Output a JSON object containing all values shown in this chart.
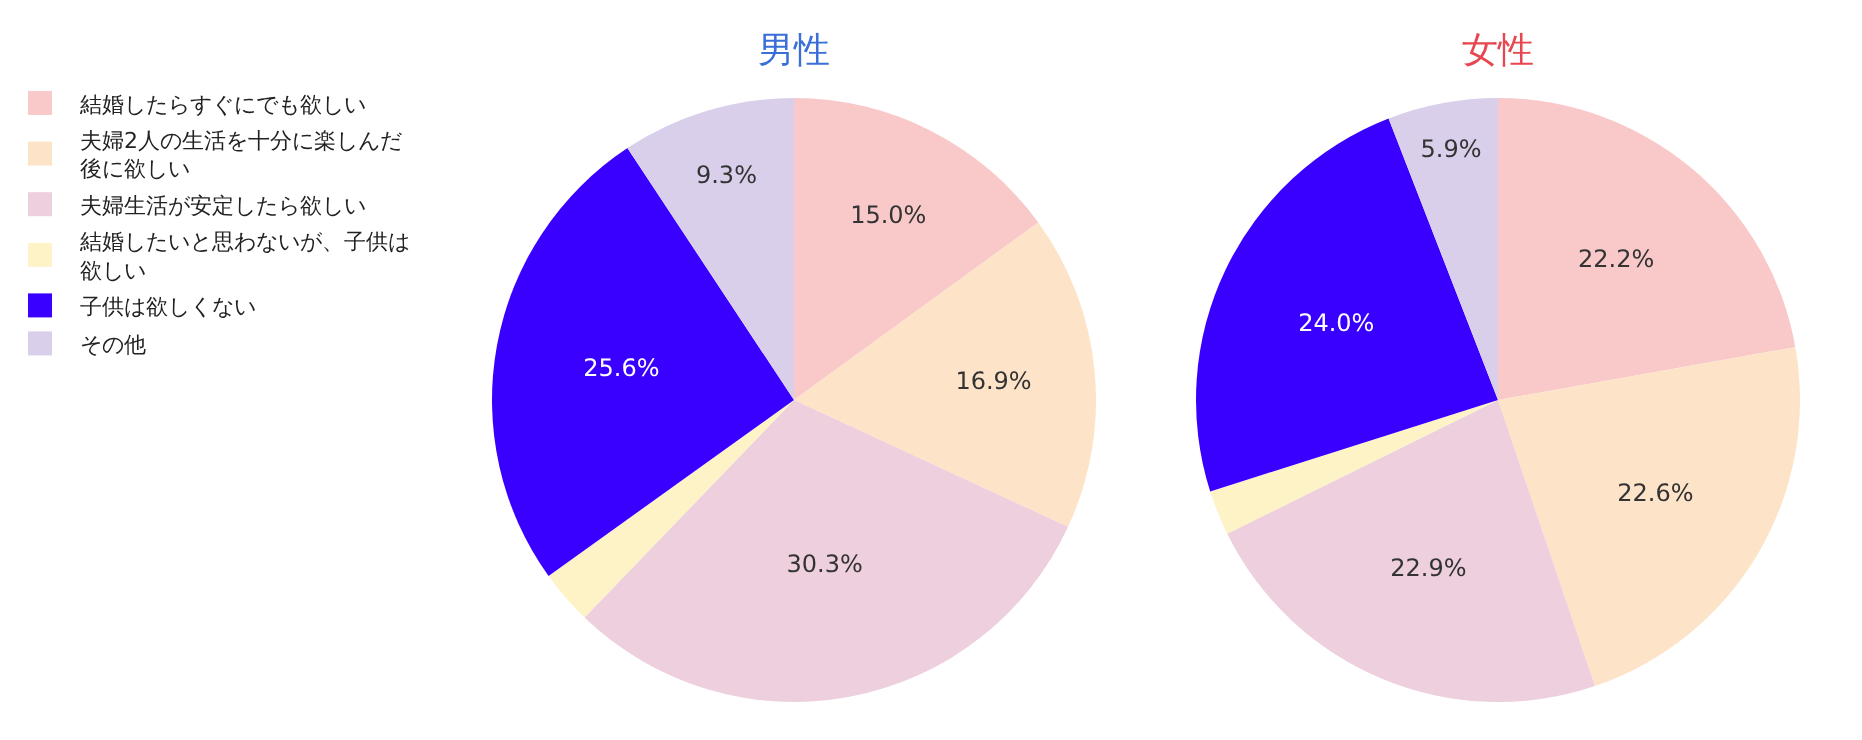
{
  "chart_data": [
    {
      "type": "pie",
      "title": "男性",
      "legend": "left",
      "categories": [
        "結婚したらすぐにでも欲しい",
        "夫婦2人の生活を十分に楽しんだ後に欲しい",
        "夫婦生活が安定したら欲しい",
        "結婚したいと思わないが、子供は欲しい",
        "子供は欲しくない",
        "その他"
      ],
      "values": [
        15.0,
        16.9,
        30.3,
        2.9,
        25.6,
        9.3
      ],
      "value_labels": [
        "15.0%",
        "16.9%",
        "30.3%",
        null,
        "25.6%",
        "9.3%"
      ],
      "colors": [
        "#f9c9c9",
        "#fde3c8",
        "#edcfdd",
        "#fdf3c7",
        "#3a00ff",
        "#d9cfea"
      ]
    },
    {
      "type": "pie",
      "title": "女性",
      "values": [
        22.2,
        22.6,
        22.9,
        2.4,
        24.0,
        5.9
      ],
      "value_labels": [
        "22.2%",
        "22.6%",
        "22.9%",
        null,
        "24.0%",
        "5.9%"
      ],
      "colors": [
        "#f9c9c9",
        "#fde3c8",
        "#edcfdd",
        "#fdf3c7",
        "#3a00ff",
        "#d9cfea"
      ]
    }
  ]
}
